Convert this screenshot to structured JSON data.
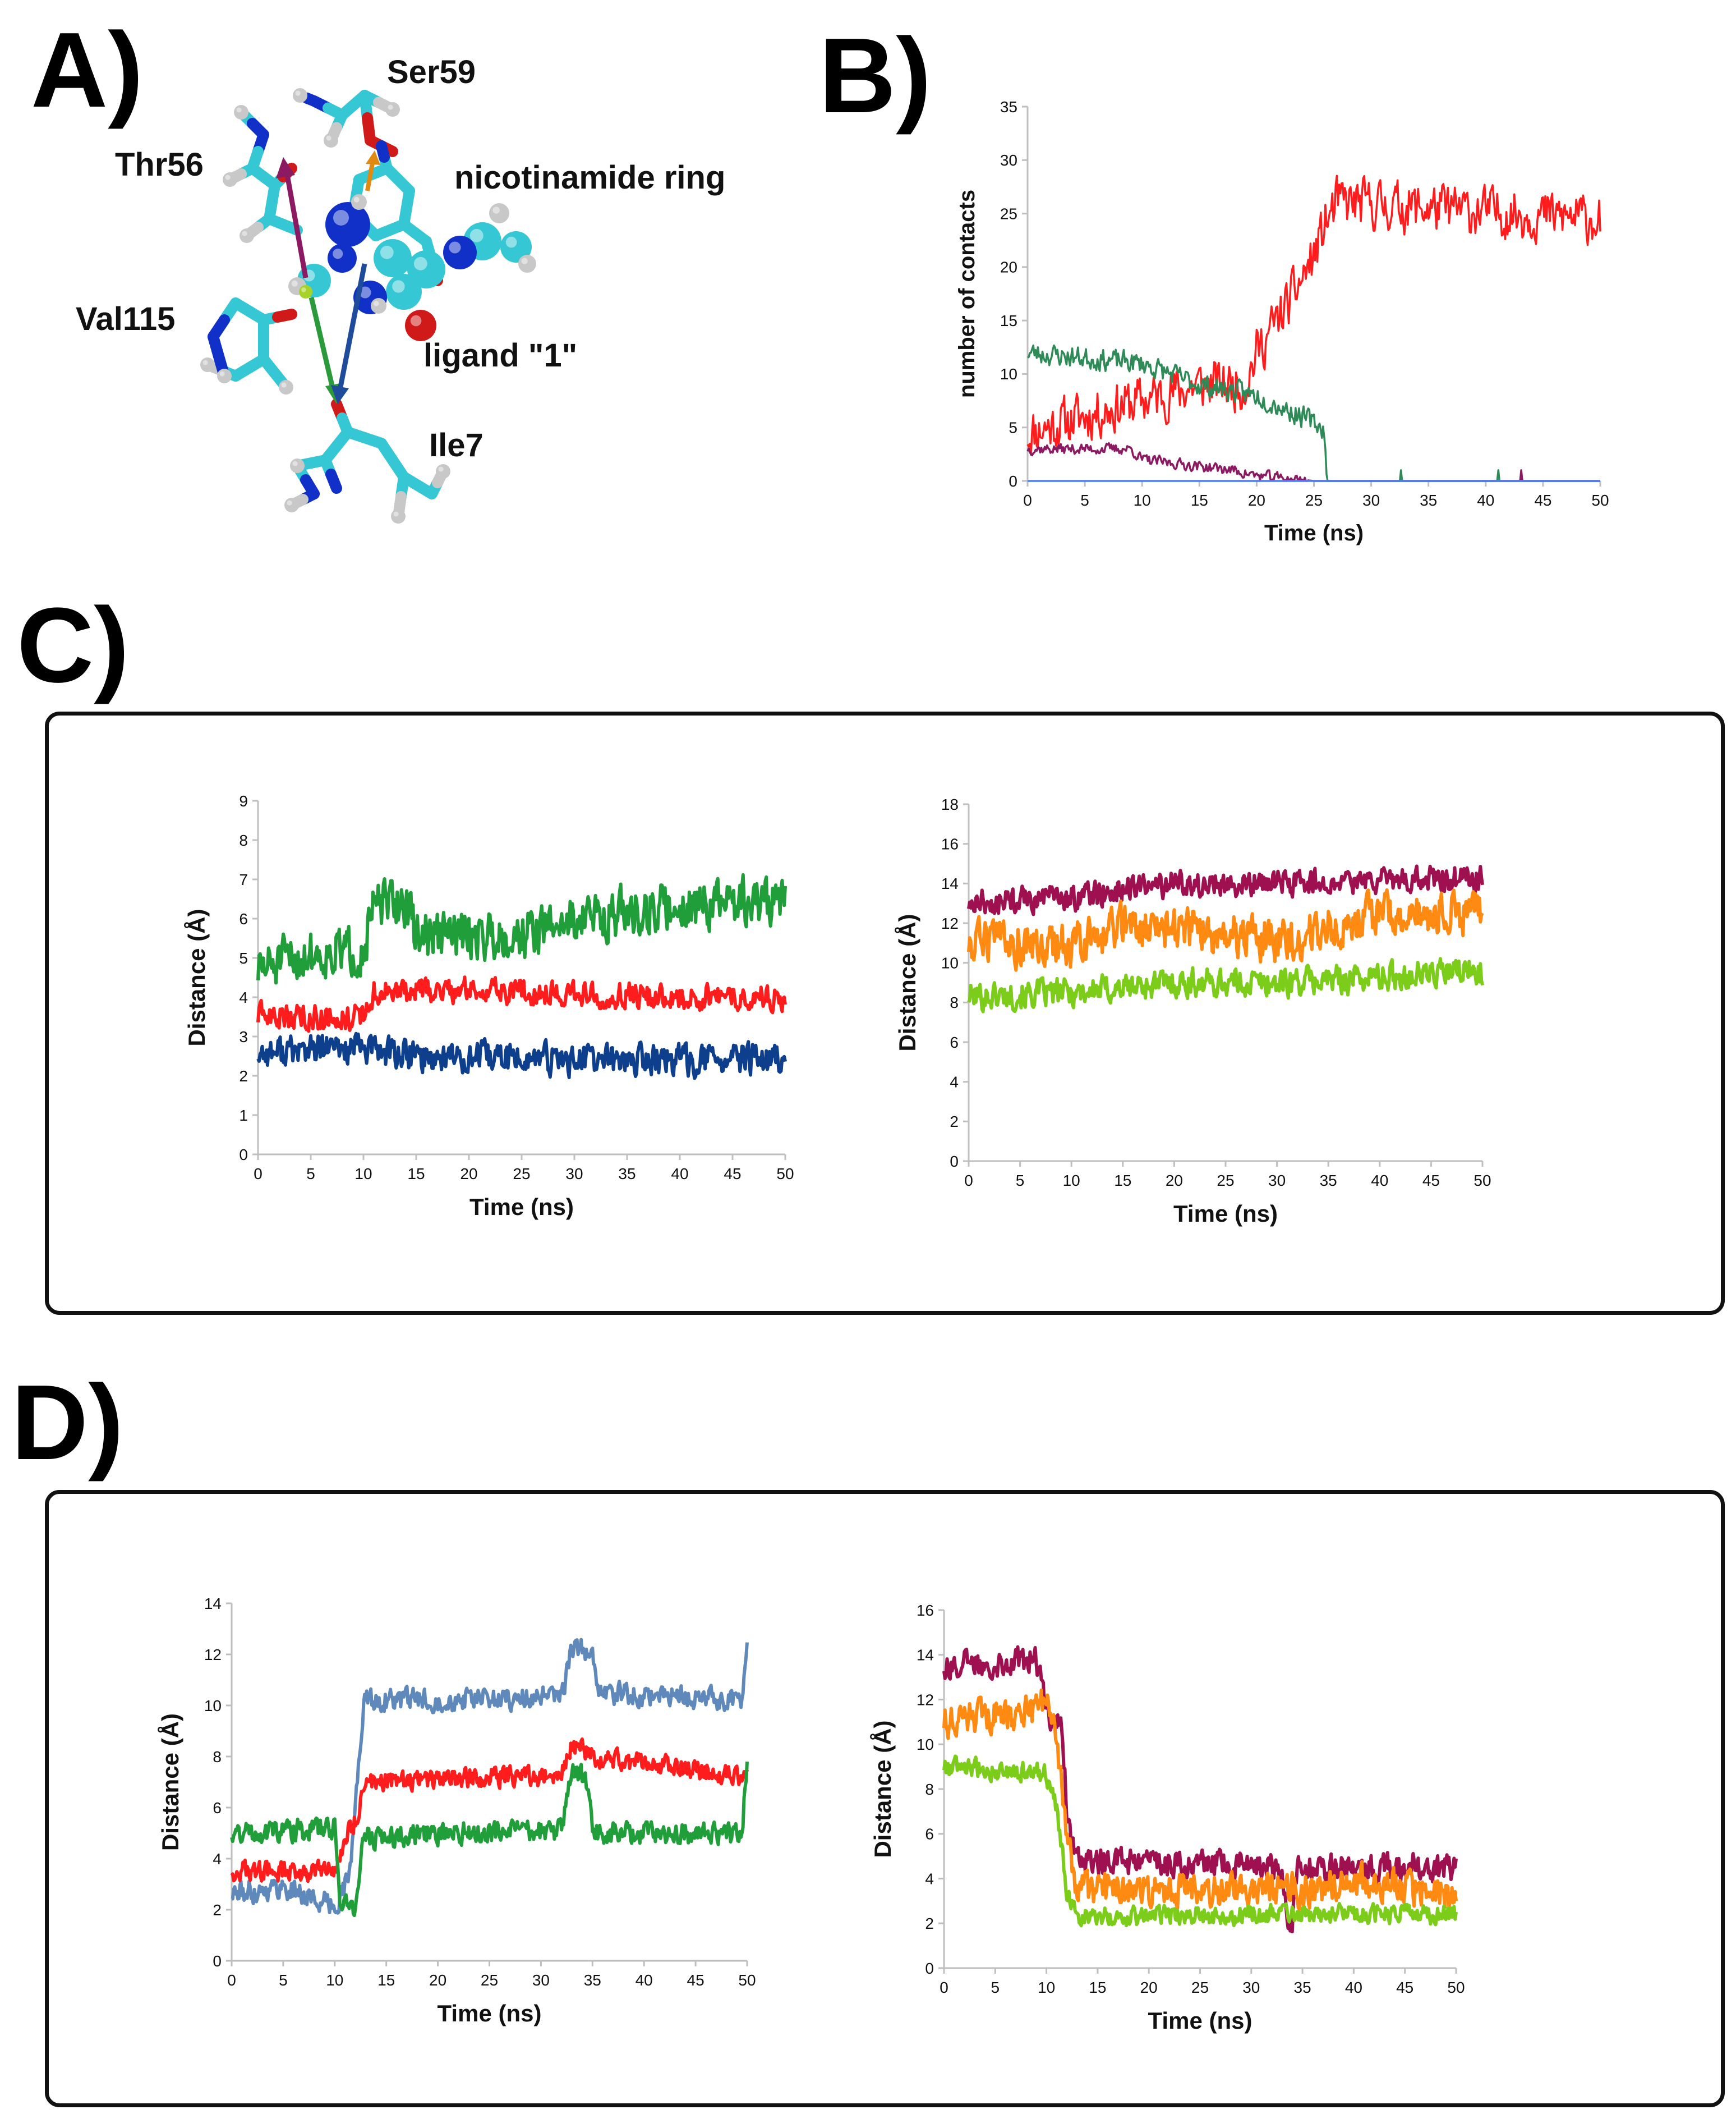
{
  "panels": {
    "A": "A)",
    "B": "B)",
    "C": "C)",
    "D": "D)"
  },
  "molecule": {
    "labels": {
      "ser59": "Ser59",
      "thr56": "Thr56",
      "nicotinamide": "nicotinamide ring",
      "val115": "Val115",
      "ligand": "ligand \"1\"",
      "ile7": "Ile7"
    }
  },
  "colors": {
    "red": "#ff1c1c",
    "green_dark": "#1f9e3a",
    "navy": "#0d3f8c",
    "teal_green": "#2e8b57",
    "purple": "#8b1a63",
    "blue_line": "#4d7cff",
    "maroon": "#9e1050",
    "orange": "#ff8a12",
    "lime": "#7ccc1a",
    "steel_blue": "#5f89ba",
    "axis": "#bfbfbf",
    "cyan_atom": "#35c8d4",
    "blue_atom": "#1030c8",
    "red_atom": "#d01a1a",
    "white_atom": "#c8c8c8"
  },
  "chart_data": [
    {
      "id": "B",
      "type": "line",
      "title": "",
      "xlabel": "Time (ns)",
      "ylabel": "number of contacts",
      "xlim": [
        0,
        50
      ],
      "ylim": [
        0,
        35
      ],
      "xticks": [
        0,
        5,
        10,
        15,
        20,
        25,
        30,
        35,
        40,
        45,
        50
      ],
      "yticks": [
        0,
        5,
        10,
        15,
        20,
        25,
        30,
        35
      ],
      "grid": false,
      "series": [
        {
          "color": "red",
          "anchors": [
            [
              0,
              4.5
            ],
            [
              8,
              7
            ],
            [
              10,
              7.5
            ],
            [
              15,
              9
            ],
            [
              19,
              9
            ],
            [
              20,
              12
            ],
            [
              23,
              17
            ],
            [
              25,
              21
            ],
            [
              26,
              24
            ],
            [
              27,
              26
            ],
            [
              28,
              26
            ],
            [
              50,
              24.5
            ]
          ],
          "noise": 3.2,
          "seed": 11
        },
        {
          "color": "teal_green",
          "anchors": [
            [
              0,
              12
            ],
            [
              10,
              11
            ],
            [
              15,
              9
            ],
            [
              20,
              8
            ],
            [
              24,
              6
            ],
            [
              25.8,
              5
            ],
            [
              26.2,
              0
            ],
            [
              50,
              0
            ]
          ],
          "noise": 1.4,
          "seed": 23
        },
        {
          "color": "purple",
          "anchors": [
            [
              0,
              3
            ],
            [
              9,
              3
            ],
            [
              10,
              2
            ],
            [
              14,
              1.5
            ],
            [
              18,
              1
            ],
            [
              20,
              0.5
            ],
            [
              22,
              0.3
            ],
            [
              25,
              0
            ],
            [
              50,
              0
            ]
          ],
          "noise": 0.7,
          "seed": 37
        },
        {
          "color": "blue_line",
          "anchors": [
            [
              0,
              0
            ],
            [
              50,
              0
            ]
          ],
          "noise": 0,
          "seed": 41
        }
      ]
    },
    {
      "id": "C-left",
      "type": "line",
      "title": "",
      "xlabel": "Time (ns)",
      "ylabel": "Distance (Å)",
      "xlim": [
        0,
        50
      ],
      "ylim": [
        0,
        9
      ],
      "xticks": [
        0,
        5,
        10,
        15,
        20,
        25,
        30,
        35,
        40,
        45,
        50
      ],
      "yticks": [
        0,
        1,
        2,
        3,
        4,
        5,
        6,
        7,
        8,
        9
      ],
      "grid": false,
      "series": [
        {
          "color": "green_dark",
          "anchors": [
            [
              0,
              4.7
            ],
            [
              5,
              5.1
            ],
            [
              10,
              5.2
            ],
            [
              11,
              6.3
            ],
            [
              14,
              6.4
            ],
            [
              15,
              5.6
            ],
            [
              25,
              5.6
            ],
            [
              30,
              6.0
            ],
            [
              40,
              6.3
            ],
            [
              50,
              6.5
            ]
          ],
          "noise": 0.85,
          "seed": 51
        },
        {
          "color": "red",
          "anchors": [
            [
              0,
              3.5
            ],
            [
              10,
              3.5
            ],
            [
              11,
              4.1
            ],
            [
              20,
              4.2
            ],
            [
              30,
              4.1
            ],
            [
              40,
              4.0
            ],
            [
              50,
              4.0
            ]
          ],
          "noise": 0.45,
          "seed": 63
        },
        {
          "color": "navy",
          "anchors": [
            [
              0,
              2.6
            ],
            [
              10,
              2.7
            ],
            [
              15,
              2.5
            ],
            [
              30,
              2.4
            ],
            [
              50,
              2.4
            ]
          ],
          "noise": 0.55,
          "seed": 77
        }
      ]
    },
    {
      "id": "C-right",
      "type": "line",
      "title": "",
      "xlabel": "Time (ns)",
      "ylabel": "Distance (Å)",
      "xlim": [
        0,
        50
      ],
      "ylim": [
        0,
        18
      ],
      "xticks": [
        0,
        5,
        10,
        15,
        20,
        25,
        30,
        35,
        40,
        45,
        50
      ],
      "yticks": [
        0,
        2,
        4,
        6,
        8,
        10,
        12,
        14,
        16,
        18
      ],
      "grid": false,
      "series": [
        {
          "color": "maroon",
          "anchors": [
            [
              0,
              13
            ],
            [
              10,
              13.3
            ],
            [
              20,
              14
            ],
            [
              30,
              14
            ],
            [
              50,
              14.3
            ]
          ],
          "noise": 0.9,
          "seed": 81
        },
        {
          "color": "orange",
          "anchors": [
            [
              0,
              11
            ],
            [
              10,
              10.8
            ],
            [
              15,
              12
            ],
            [
              25,
              11.5
            ],
            [
              30,
              11
            ],
            [
              40,
              12.5
            ],
            [
              50,
              12.5
            ]
          ],
          "noise": 1.5,
          "seed": 93
        },
        {
          "color": "lime",
          "anchors": [
            [
              0,
              8.3
            ],
            [
              10,
              8.5
            ],
            [
              20,
              9
            ],
            [
              30,
              9
            ],
            [
              50,
              9.6
            ]
          ],
          "noise": 1.0,
          "seed": 101
        }
      ]
    },
    {
      "id": "D-left",
      "type": "line",
      "title": "",
      "xlabel": "Time (ns)",
      "ylabel": "Distance (Å)",
      "xlim": [
        0,
        50
      ],
      "ylim": [
        0,
        14
      ],
      "xticks": [
        0,
        5,
        10,
        15,
        20,
        25,
        30,
        35,
        40,
        45,
        50
      ],
      "yticks": [
        0,
        2,
        4,
        6,
        8,
        10,
        12,
        14
      ],
      "grid": false,
      "series": [
        {
          "color": "steel_blue",
          "anchors": [
            [
              0,
              2.6
            ],
            [
              5,
              2.9
            ],
            [
              10,
              2.1
            ],
            [
              11.5,
              3.5
            ],
            [
              12,
              6
            ],
            [
              12.8,
              10.2
            ],
            [
              32,
              10.3
            ],
            [
              33,
              12.3
            ],
            [
              35,
              12
            ],
            [
              35.5,
              10.5
            ],
            [
              49.5,
              10.2
            ],
            [
              50,
              12.5
            ]
          ],
          "noise": 0.6,
          "seed": 111
        },
        {
          "color": "red",
          "anchors": [
            [
              0,
              3.5
            ],
            [
              10,
              3.5
            ],
            [
              11,
              4.8
            ],
            [
              12,
              5.5
            ],
            [
              13,
              7
            ],
            [
              32,
              7.3
            ],
            [
              33,
              8.5
            ],
            [
              35,
              8
            ],
            [
              50,
              7.2
            ]
          ],
          "noise": 0.55,
          "seed": 123
        },
        {
          "color": "green_dark",
          "anchors": [
            [
              0,
              5
            ],
            [
              10,
              5.2
            ],
            [
              10.5,
              2.5
            ],
            [
              12,
              2
            ],
            [
              12.8,
              4.8
            ],
            [
              20,
              5
            ],
            [
              32,
              5.1
            ],
            [
              33,
              7.5
            ],
            [
              34.5,
              7
            ],
            [
              35,
              5
            ],
            [
              49.5,
              5
            ],
            [
              50,
              8
            ]
          ],
          "noise": 0.6,
          "seed": 131
        }
      ]
    },
    {
      "id": "D-right",
      "type": "line",
      "title": "",
      "xlabel": "Time (ns)",
      "ylabel": "Distance (Å)",
      "xlim": [
        0,
        50
      ],
      "ylim": [
        0,
        16
      ],
      "xticks": [
        0,
        5,
        10,
        15,
        20,
        25,
        30,
        35,
        40,
        45,
        50
      ],
      "yticks": [
        0,
        2,
        4,
        6,
        8,
        10,
        12,
        14,
        16
      ],
      "grid": false,
      "series": [
        {
          "color": "maroon",
          "anchors": [
            [
              0,
              13.5
            ],
            [
              9,
              13.8
            ],
            [
              10,
              11.5
            ],
            [
              11.5,
              11
            ],
            [
              12,
              7
            ],
            [
              13,
              4.8
            ],
            [
              30,
              4.6
            ],
            [
              33,
              4.5
            ],
            [
              33.5,
              2.2
            ],
            [
              34,
              2.2
            ],
            [
              34.5,
              4.5
            ],
            [
              50,
              4.5
            ]
          ],
          "noise": 0.85,
          "seed": 141
        },
        {
          "color": "orange",
          "anchors": [
            [
              0,
              11
            ],
            [
              9,
              11.5
            ],
            [
              10,
              12
            ],
            [
              11,
              10
            ],
            [
              12,
              6
            ],
            [
              13,
              3.5
            ],
            [
              33,
              3.4
            ],
            [
              35,
              3.5
            ],
            [
              40,
              4
            ],
            [
              50,
              3.2
            ]
          ],
          "noise": 1.0,
          "seed": 151
        },
        {
          "color": "lime",
          "anchors": [
            [
              0,
              9
            ],
            [
              10,
              8.7
            ],
            [
              11,
              7
            ],
            [
              12,
              3.5
            ],
            [
              13,
              2.3
            ],
            [
              30,
              2.4
            ],
            [
              50,
              2.4
            ]
          ],
          "noise": 0.6,
          "seed": 161
        }
      ]
    }
  ]
}
